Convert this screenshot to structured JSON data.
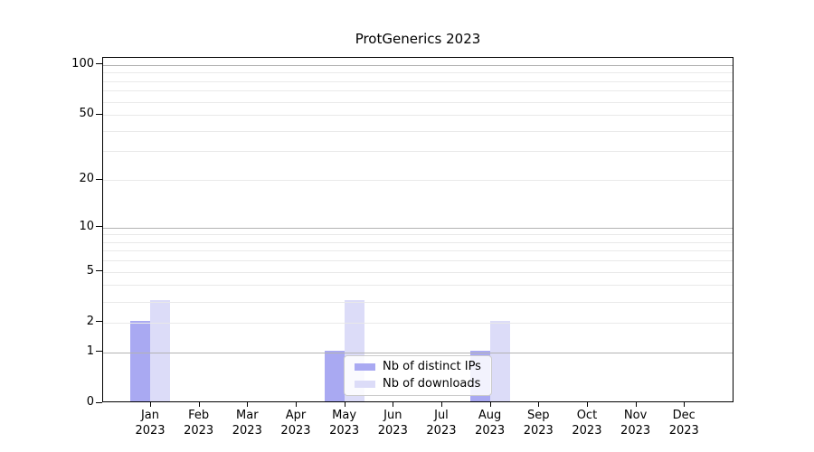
{
  "title": "ProtGenerics 2023",
  "colors": {
    "ips_bar": "#a9a9f2",
    "downloads_bar": "#dcdcf8",
    "grid_major": "#b3b3b3",
    "grid_minor": "#e9e9e9",
    "axis": "#000000",
    "legend_border": "#cccccc",
    "legend_bg": "rgba(255,255,255,0.85)"
  },
  "chart_data": {
    "type": "bar",
    "title": "ProtGenerics 2023",
    "categories": [
      "Jan 2023",
      "Feb 2023",
      "Mar 2023",
      "Apr 2023",
      "May 2023",
      "Jun 2023",
      "Jul 2023",
      "Aug 2023",
      "Sep 2023",
      "Oct 2023",
      "Nov 2023",
      "Dec 2023"
    ],
    "series": [
      {
        "name": "Nb of distinct IPs",
        "color": "#a9a9f2",
        "values": [
          2,
          0,
          0,
          0,
          1,
          0,
          0,
          1,
          0,
          0,
          0,
          0
        ]
      },
      {
        "name": "Nb of downloads",
        "color": "#dcdcf8",
        "values": [
          3,
          0,
          0,
          0,
          3,
          0,
          0,
          2,
          0,
          0,
          0,
          0
        ]
      }
    ],
    "yscale": "log1p",
    "ylim": [
      0,
      110
    ],
    "yticks": [
      0,
      1,
      2,
      5,
      10,
      20,
      50,
      100
    ],
    "grid_major_values": [
      1,
      10,
      100
    ],
    "grid_minor_values": [
      2,
      3,
      4,
      5,
      6,
      7,
      8,
      9,
      20,
      30,
      40,
      50,
      60,
      70,
      80,
      90
    ],
    "grid": true,
    "legend_position": "lower-center",
    "xlabel": "",
    "ylabel": ""
  }
}
